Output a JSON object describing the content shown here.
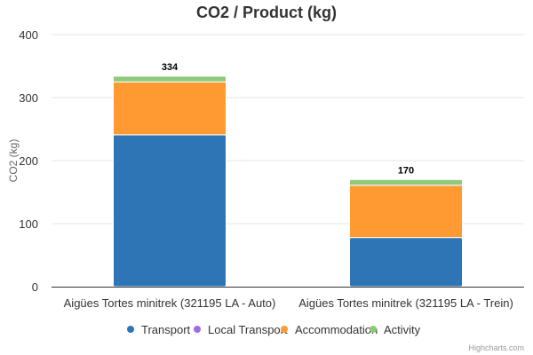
{
  "chart_data": {
    "type": "bar",
    "stacked": true,
    "title": "CO2 / Product (kg)",
    "ylabel": "CO2 (kg)",
    "xlabel": "",
    "ylim": [
      0,
      400
    ],
    "yticks": [
      0,
      100,
      200,
      300,
      400
    ],
    "grid": true,
    "legend_position": "bottom",
    "categories": [
      "Aigües Tortes minitrek (321195 LA - Auto)",
      "Aigües Tortes minitrek (321195 LA - Trein)"
    ],
    "series": [
      {
        "name": "Transport",
        "color": "#2e75b6",
        "values": [
          241,
          78
        ]
      },
      {
        "name": "Local Transport",
        "color": "#a06de0",
        "values": [
          0,
          0
        ]
      },
      {
        "name": "Accommodation",
        "color": "#ff9a33",
        "values": [
          84,
          83
        ]
      },
      {
        "name": "Activity",
        "color": "#8fc97a",
        "values": [
          9,
          9
        ]
      }
    ],
    "totals": [
      334,
      170
    ]
  },
  "credits": "Highcharts.com"
}
